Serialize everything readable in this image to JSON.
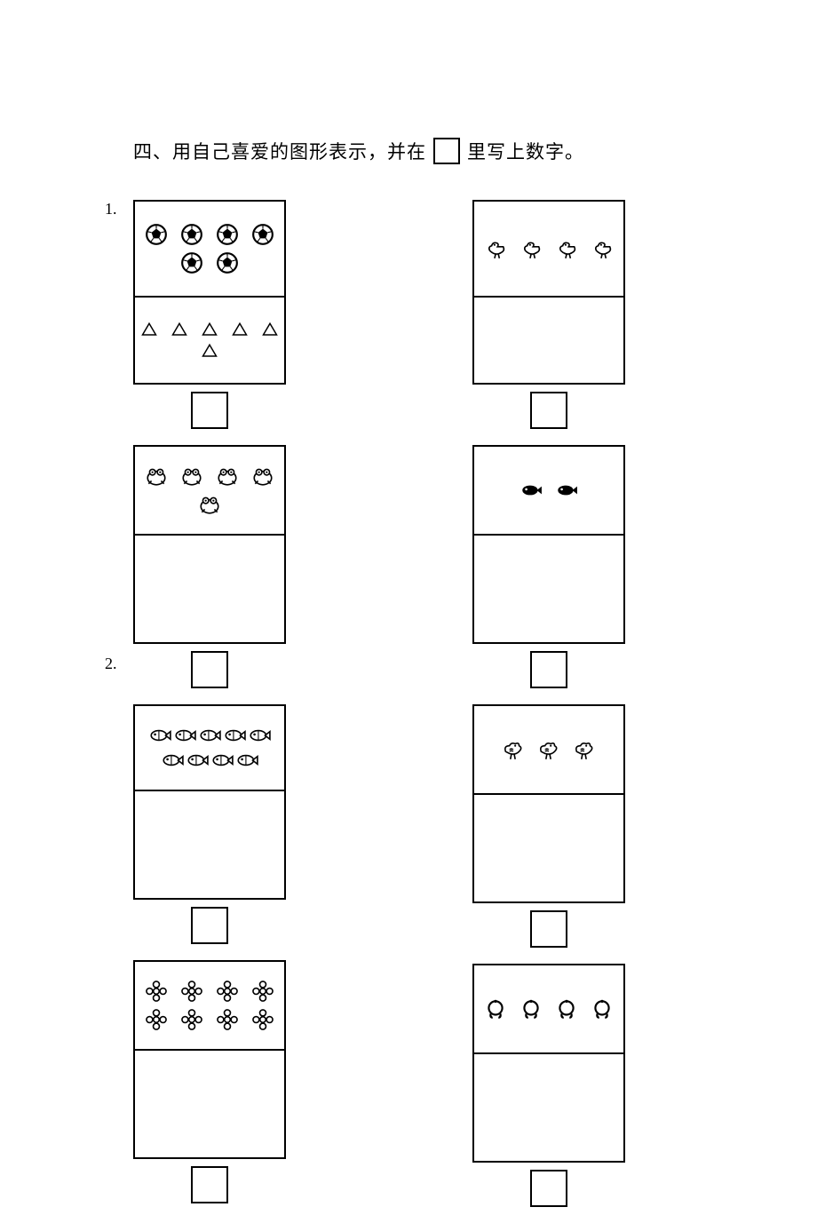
{
  "heading_prefix": "四、用自己喜爱的图形表示，并在",
  "heading_suffix": "里写上数字。",
  "q1_label": "1.",
  "q2_label": "2.",
  "problems": {
    "p1": {
      "left": [
        {
          "top_icon": "soccer",
          "top_count": 6,
          "bottom_icon": "triangle",
          "bottom_count": 6,
          "top_h": 86,
          "bottom_h": 76,
          "example_filled": true
        },
        {
          "top_icon": "frog",
          "top_count": 5,
          "bottom_icon": "",
          "bottom_count": 0,
          "top_h": 78,
          "bottom_h": 100
        }
      ],
      "right": [
        {
          "top_icon": "duck",
          "top_count": 4,
          "bottom_icon": "",
          "bottom_count": 0,
          "top_h": 86,
          "bottom_h": 76
        },
        {
          "top_icon": "fish-b",
          "top_count": 2,
          "bottom_icon": "",
          "bottom_count": 0,
          "top_h": 78,
          "bottom_h": 100
        }
      ]
    },
    "p2": {
      "left": [
        {
          "top_icon": "fish-o",
          "top_count": 9,
          "bottom_icon": "",
          "bottom_count": 0,
          "top_h": 78,
          "bottom_h": 100
        },
        {
          "top_icon": "flower",
          "top_count": 8,
          "bottom_icon": "",
          "bottom_count": 0,
          "top_h": 78,
          "bottom_h": 100
        }
      ],
      "right": [
        {
          "top_icon": "bird",
          "top_count": 3,
          "bottom_icon": "",
          "bottom_count": 0,
          "top_h": 78,
          "bottom_h": 100
        },
        {
          "top_icon": "ring",
          "top_count": 4,
          "bottom_icon": "",
          "bottom_count": 0,
          "top_h": 78,
          "bottom_h": 100
        }
      ]
    }
  },
  "colors": {
    "stroke": "#000000",
    "bg": "#ffffff"
  }
}
